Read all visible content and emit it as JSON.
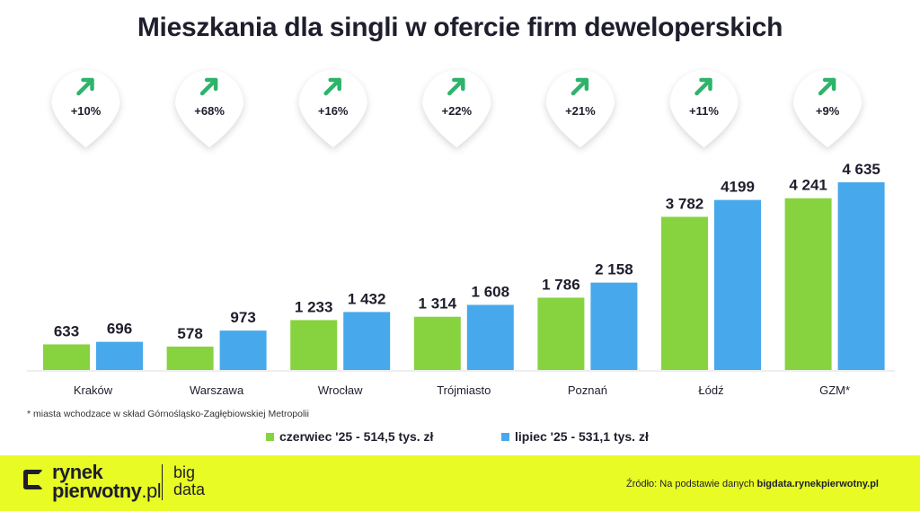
{
  "title": "Mieszkania dla singli w ofercie firm deweloperskich",
  "chart_data": {
    "type": "bar",
    "categories": [
      "Kraków",
      "Warszawa",
      "Wrocław",
      "Trójmiasto",
      "Poznań",
      "Łódź",
      "GZM*"
    ],
    "series": [
      {
        "name": "czerwiec '25 - 514,5 tys. zł",
        "color": "#86d33f",
        "values": [
          633,
          578,
          1233,
          1314,
          1786,
          3782,
          4241
        ],
        "labels": [
          "633",
          "578",
          "1 233",
          "1 314",
          "1 786",
          "3 782",
          "4 241"
        ]
      },
      {
        "name": "lipiec '25 - 531,1 tys. zł",
        "color": "#47a9ec",
        "values": [
          696,
          973,
          1432,
          1608,
          2158,
          4199,
          4635
        ],
        "labels": [
          "696",
          "973",
          "1 432",
          "1 608",
          "2 158",
          "4199",
          "4 635"
        ]
      }
    ],
    "changes": [
      "+10%",
      "+68%",
      "+16%",
      "+22%",
      "+21%",
      "+11%",
      "+9%"
    ],
    "change_color": "#2fb36b",
    "ylim": [
      0,
      5000
    ],
    "xlabel": "",
    "ylabel": "",
    "grid": false,
    "legend": "bottom-center"
  },
  "note": "* miasta wchodzace w skład Górnośląsko-Zagłębiowskiej Metropolii",
  "footer": {
    "logo_line1": "rynek",
    "logo_line2_bold": "pierwotny",
    "logo_line2_suffix": ".pl",
    "bigdata_line1": "big",
    "bigdata_line2": "data",
    "source_prefix": "Źródło: Na podstawie danych ",
    "source_bold": "bigdata.rynekpierwotny.pl",
    "bg_color": "#e8fb24"
  }
}
